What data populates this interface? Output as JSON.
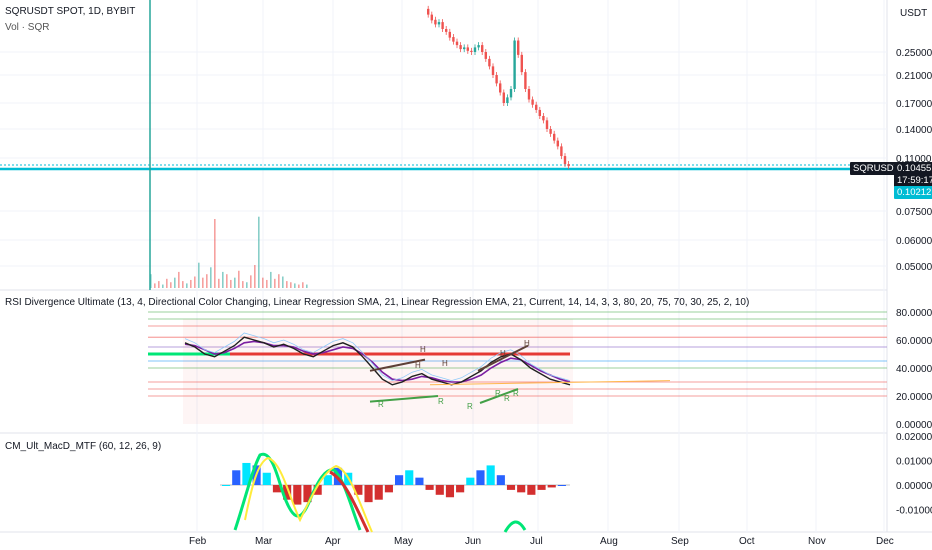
{
  "header": {
    "symbol_title": "SQRUSDT SPOT, 1D, BYBIT",
    "volume_label": "Vol · SQR",
    "currency": "USDT"
  },
  "price_axis": {
    "ticks": [
      "0.25000",
      "0.21000",
      "0.17000",
      "0.14000",
      "0.11000",
      "0.07500",
      "0.06000",
      "0.05000"
    ],
    "symbol_tag": "SQRUSDT",
    "last_price": "0.10455",
    "countdown": "17:59:17",
    "line_price": "0.10212"
  },
  "rsi_pane": {
    "title": "RSI Divergence Ultimate (13, 4, Directional Color Changing, Linear Regression SMA, 21, Linear Regression EMA, 21,  Current, 14, 14, 3, 3, 80, 20, 75, 70, 30, 25, 2, 10)",
    "ticks": [
      "80.00000",
      "60.00000",
      "40.00000",
      "20.00000",
      "0.00000"
    ],
    "divergence_labels": [
      "H",
      "H",
      "H",
      "H",
      "H",
      "R",
      "R",
      "R",
      "R",
      "R",
      "R"
    ]
  },
  "macd_pane": {
    "title": "CM_Ult_MacD_MTF (60, 12, 26, 9)",
    "ticks": [
      "0.02000",
      "0.01000",
      "0.00000",
      "-0.01000"
    ]
  },
  "time_axis": {
    "months": [
      "Feb",
      "Mar",
      "Apr",
      "May",
      "Jun",
      "Jul",
      "Aug",
      "Sep",
      "Oct",
      "Nov",
      "Dec"
    ]
  },
  "colors": {
    "up": "#26a69a",
    "down": "#ef5350",
    "cyan": "#00bcd4",
    "macd_blue": "#2962ff",
    "macd_cyan": "#00e5ff",
    "macd_red": "#d32f2f"
  },
  "chart_data": {
    "type": "candlestick",
    "title": "SQRUSDT SPOT, 1D, BYBIT",
    "price_candles": [
      {
        "o": 0.325,
        "c": 0.315
      },
      {
        "o": 0.315,
        "c": 0.305
      },
      {
        "o": 0.306,
        "c": 0.298
      },
      {
        "o": 0.298,
        "c": 0.302
      },
      {
        "o": 0.302,
        "c": 0.29
      },
      {
        "o": 0.29,
        "c": 0.285
      },
      {
        "o": 0.285,
        "c": 0.275
      },
      {
        "o": 0.276,
        "c": 0.268
      },
      {
        "o": 0.268,
        "c": 0.262
      },
      {
        "o": 0.262,
        "c": 0.255
      },
      {
        "o": 0.255,
        "c": 0.258
      },
      {
        "o": 0.258,
        "c": 0.252
      },
      {
        "o": 0.252,
        "c": 0.25
      },
      {
        "o": 0.25,
        "c": 0.258
      },
      {
        "o": 0.258,
        "c": 0.262
      },
      {
        "o": 0.262,
        "c": 0.25
      },
      {
        "o": 0.25,
        "c": 0.238
      },
      {
        "o": 0.238,
        "c": 0.225
      },
      {
        "o": 0.225,
        "c": 0.21
      },
      {
        "o": 0.21,
        "c": 0.198
      },
      {
        "o": 0.198,
        "c": 0.185
      },
      {
        "o": 0.185,
        "c": 0.17
      },
      {
        "o": 0.17,
        "c": 0.178
      },
      {
        "o": 0.178,
        "c": 0.19
      },
      {
        "o": 0.19,
        "c": 0.27
      },
      {
        "o": 0.27,
        "c": 0.245
      },
      {
        "o": 0.245,
        "c": 0.215
      },
      {
        "o": 0.215,
        "c": 0.19
      },
      {
        "o": 0.19,
        "c": 0.175
      },
      {
        "o": 0.175,
        "c": 0.168
      },
      {
        "o": 0.168,
        "c": 0.162
      },
      {
        "o": 0.162,
        "c": 0.155
      },
      {
        "o": 0.155,
        "c": 0.15
      },
      {
        "o": 0.15,
        "c": 0.14
      },
      {
        "o": 0.14,
        "c": 0.135
      },
      {
        "o": 0.135,
        "c": 0.128
      },
      {
        "o": 0.128,
        "c": 0.122
      },
      {
        "o": 0.122,
        "c": 0.112
      },
      {
        "o": 0.112,
        "c": 0.106
      },
      {
        "o": 0.106,
        "c": 0.1046
      }
    ],
    "volume_bars": [
      12,
      4,
      6,
      3,
      8,
      5,
      9,
      14,
      6,
      4,
      7,
      10,
      22,
      9,
      12,
      18,
      60,
      8,
      14,
      12,
      7,
      9,
      15,
      6,
      5,
      11,
      20,
      62,
      9,
      7,
      14,
      8,
      12,
      10,
      6,
      5,
      4,
      3,
      5,
      3
    ],
    "rsi": [
      58,
      55,
      50,
      48,
      52,
      56,
      62,
      60,
      58,
      55,
      57,
      54,
      50,
      48,
      52,
      56,
      58,
      55,
      48,
      40,
      32,
      28,
      30,
      34,
      36,
      32,
      30,
      28,
      30,
      34,
      38,
      44,
      48,
      50,
      46,
      40,
      36,
      32,
      30,
      28
    ],
    "rsi_ma": [
      57,
      56,
      53,
      50,
      51,
      54,
      58,
      59,
      58,
      56,
      56,
      55,
      52,
      50,
      51,
      53,
      55,
      54,
      50,
      44,
      37,
      32,
      31,
      32,
      34,
      33,
      31,
      30,
      30,
      32,
      35,
      40,
      44,
      47,
      46,
      42,
      38,
      35,
      32,
      30
    ],
    "macd_hist": [
      0.0,
      0.006,
      0.009,
      0.008,
      0.005,
      -0.003,
      -0.006,
      -0.008,
      -0.007,
      -0.004,
      0.004,
      0.007,
      0.005,
      -0.004,
      -0.007,
      -0.006,
      -0.003,
      0.004,
      0.006,
      0.003,
      -0.002,
      -0.004,
      -0.005,
      -0.003,
      0.003,
      0.006,
      0.008,
      0.004,
      -0.002,
      -0.003,
      -0.004,
      -0.002,
      -0.001,
      0.0
    ],
    "ylim": [
      0.045,
      0.33
    ]
  }
}
